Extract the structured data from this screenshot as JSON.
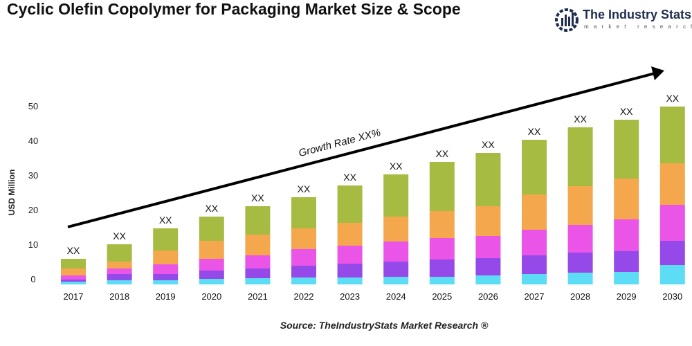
{
  "title": "Cyclic Olefin Copolymer for Packaging Market Size & Scope",
  "logo": {
    "name": "The Industry Stats",
    "tagline": "market research"
  },
  "source": "Source: TheIndustryStats Market Research ®",
  "chart_data": {
    "type": "bar",
    "stacked": true,
    "title": "Cyclic Olefin Copolymer for Packaging Market Size & Scope",
    "xlabel": "",
    "ylabel": "USD Million",
    "ylim": [
      0,
      50
    ],
    "yticks": [
      0,
      10,
      20,
      30,
      40,
      50
    ],
    "grid": false,
    "annotation": "Growth Rate XX%",
    "categories": [
      "2017",
      "2018",
      "2019",
      "2020",
      "2021",
      "2022",
      "2023",
      "2024",
      "2025",
      "2026",
      "2027",
      "2028",
      "2029",
      "2030"
    ],
    "bar_labels": [
      "XX",
      "XX",
      "XX",
      "XX",
      "XX",
      "XX",
      "XX",
      "XX",
      "XX",
      "XX",
      "XX",
      "XX",
      "XX",
      "XX"
    ],
    "series": [
      {
        "color": "#5ddcf5",
        "values": [
          0.8,
          1.2,
          1.2,
          1.6,
          1.8,
          2.0,
          2.0,
          2.2,
          2.2,
          2.6,
          3.0,
          3.4,
          3.6,
          5.6
        ]
      },
      {
        "color": "#9549e8",
        "values": [
          0.6,
          1.8,
          1.8,
          2.4,
          2.8,
          3.4,
          4.0,
          4.4,
          5.0,
          5.0,
          5.4,
          5.8,
          6.0,
          7.0
        ]
      },
      {
        "color": "#ea55e8",
        "values": [
          1.2,
          1.6,
          2.8,
          3.4,
          3.8,
          4.8,
          5.2,
          5.8,
          6.2,
          6.4,
          7.4,
          8.0,
          9.2,
          10.4
        ]
      },
      {
        "color": "#f4a74c",
        "values": [
          2.0,
          2.0,
          4.0,
          5.2,
          6.0,
          6.0,
          6.6,
          7.2,
          7.8,
          8.6,
          10.2,
          11.2,
          11.8,
          12.0
        ]
      },
      {
        "color": "#a6bb42",
        "values": [
          2.8,
          5.0,
          6.4,
          7.0,
          8.2,
          9.0,
          10.8,
          12.2,
          14.2,
          15.4,
          15.8,
          17.0,
          17.0,
          16.4
        ]
      }
    ]
  }
}
